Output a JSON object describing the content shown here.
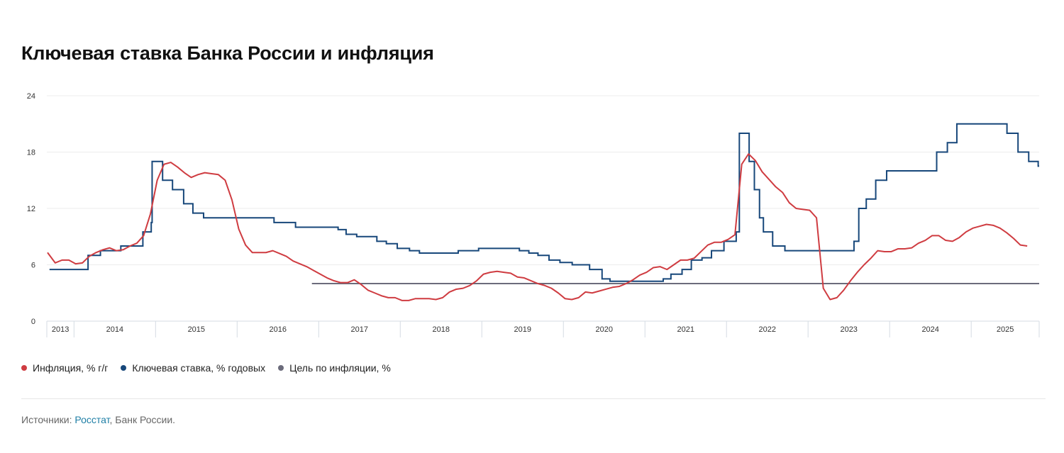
{
  "chart_data": {
    "type": "line",
    "title": "Ключевая ставка Банка России и инфляция",
    "xlabel": "",
    "ylabel": "",
    "ylim": [
      0,
      24
    ],
    "yticks": [
      "0",
      "6",
      "12",
      "18",
      "24"
    ],
    "xlim": [
      "2013-09",
      "2025-11"
    ],
    "xticks": [
      "2013",
      "2014",
      "2015",
      "2016",
      "2017",
      "2018",
      "2019",
      "2020",
      "2021",
      "2022",
      "2023",
      "2024",
      "2025"
    ],
    "grid": true,
    "legend_position": "bottom-left",
    "series": [
      {
        "name": "Инфляция, % г/г",
        "color": "#cf3c41",
        "start": "2013-09",
        "frequency": "monthly",
        "values": [
          7.3,
          6.2,
          6.5,
          6.5,
          6.1,
          6.2,
          6.9,
          7.3,
          7.6,
          7.8,
          7.5,
          7.6,
          8.0,
          8.3,
          9.1,
          11.4,
          15.0,
          16.7,
          16.9,
          16.4,
          15.8,
          15.3,
          15.6,
          15.8,
          15.7,
          15.6,
          15.0,
          12.9,
          9.8,
          8.1,
          7.3,
          7.3,
          7.3,
          7.5,
          7.2,
          6.9,
          6.4,
          6.1,
          5.8,
          5.4,
          5.0,
          4.6,
          4.3,
          4.1,
          4.1,
          4.4,
          3.9,
          3.3,
          3.0,
          2.7,
          2.5,
          2.5,
          2.2,
          2.2,
          2.4,
          2.4,
          2.4,
          2.3,
          2.5,
          3.1,
          3.4,
          3.5,
          3.8,
          4.3,
          5.0,
          5.2,
          5.3,
          5.2,
          5.1,
          4.7,
          4.6,
          4.3,
          4.0,
          3.8,
          3.5,
          3.0,
          2.4,
          2.3,
          2.5,
          3.1,
          3.0,
          3.2,
          3.4,
          3.6,
          3.7,
          4.0,
          4.4,
          4.9,
          5.2,
          5.7,
          5.8,
          5.5,
          6.0,
          6.5,
          6.5,
          6.7,
          7.4,
          8.1,
          8.4,
          8.4,
          8.7,
          9.2,
          16.7,
          17.8,
          17.1,
          15.9,
          15.1,
          14.3,
          13.7,
          12.6,
          12.0,
          11.9,
          11.8,
          11.0,
          3.5,
          2.3,
          2.5,
          3.3,
          4.3,
          5.2,
          6.0,
          6.7,
          7.5,
          7.4,
          7.4,
          7.7,
          7.7,
          7.8,
          8.3,
          8.6,
          9.1,
          9.1,
          8.6,
          8.5,
          8.9,
          9.5,
          9.9,
          10.1,
          10.3,
          10.2,
          9.9,
          9.4,
          8.8,
          8.1,
          8.0
        ]
      },
      {
        "name": "Ключевая ставка, % годовых",
        "color": "#17477a",
        "step": true,
        "points": [
          [
            "2013-09-13",
            5.5
          ],
          [
            "2014-03-03",
            7.0
          ],
          [
            "2014-04-28",
            7.5
          ],
          [
            "2014-07-28",
            8.0
          ],
          [
            "2014-11-05",
            9.5
          ],
          [
            "2014-12-12",
            10.5
          ],
          [
            "2014-12-16",
            17.0
          ],
          [
            "2015-02-02",
            15.0
          ],
          [
            "2015-03-16",
            14.0
          ],
          [
            "2015-05-05",
            12.5
          ],
          [
            "2015-06-16",
            11.5
          ],
          [
            "2015-08-03",
            11.0
          ],
          [
            "2016-06-14",
            10.5
          ],
          [
            "2016-09-19",
            10.0
          ],
          [
            "2017-03-27",
            9.75
          ],
          [
            "2017-05-02",
            9.25
          ],
          [
            "2017-06-19",
            9.0
          ],
          [
            "2017-09-18",
            8.5
          ],
          [
            "2017-10-30",
            8.25
          ],
          [
            "2017-12-18",
            7.75
          ],
          [
            "2018-02-12",
            7.5
          ],
          [
            "2018-03-26",
            7.25
          ],
          [
            "2018-09-17",
            7.5
          ],
          [
            "2018-12-17",
            7.75
          ],
          [
            "2019-06-17",
            7.5
          ],
          [
            "2019-07-29",
            7.25
          ],
          [
            "2019-09-09",
            7.0
          ],
          [
            "2019-10-28",
            6.5
          ],
          [
            "2019-12-16",
            6.25
          ],
          [
            "2020-02-10",
            6.0
          ],
          [
            "2020-04-27",
            5.5
          ],
          [
            "2020-06-22",
            4.5
          ],
          [
            "2020-07-27",
            4.25
          ],
          [
            "2021-03-22",
            4.5
          ],
          [
            "2021-04-26",
            5.0
          ],
          [
            "2021-06-15",
            5.5
          ],
          [
            "2021-07-26",
            6.5
          ],
          [
            "2021-09-13",
            6.75
          ],
          [
            "2021-10-25",
            7.5
          ],
          [
            "2021-12-20",
            8.5
          ],
          [
            "2022-02-14",
            9.5
          ],
          [
            "2022-02-28",
            20.0
          ],
          [
            "2022-04-11",
            17.0
          ],
          [
            "2022-05-04",
            14.0
          ],
          [
            "2022-05-27",
            11.0
          ],
          [
            "2022-06-14",
            9.5
          ],
          [
            "2022-07-25",
            8.0
          ],
          [
            "2022-09-19",
            7.5
          ],
          [
            "2023-07-24",
            8.5
          ],
          [
            "2023-08-15",
            12.0
          ],
          [
            "2023-09-18",
            13.0
          ],
          [
            "2023-10-30",
            15.0
          ],
          [
            "2023-12-18",
            16.0
          ],
          [
            "2024-07-29",
            18.0
          ],
          [
            "2024-09-16",
            19.0
          ],
          [
            "2024-10-28",
            21.0
          ],
          [
            "2025-06-09",
            20.0
          ],
          [
            "2025-07-28",
            18.0
          ],
          [
            "2025-09-15",
            17.0
          ],
          [
            "2025-10-27",
            16.5
          ]
        ]
      },
      {
        "name": "Цель по инфляции, %",
        "color": "#6b6b7b",
        "points": [
          [
            "2016-12-01",
            4.0
          ],
          [
            "2025-11-01",
            4.0
          ]
        ]
      }
    ]
  },
  "sources": {
    "prefix": "Источники: ",
    "link": "Росстат",
    "suffix": ", Банк России."
  }
}
